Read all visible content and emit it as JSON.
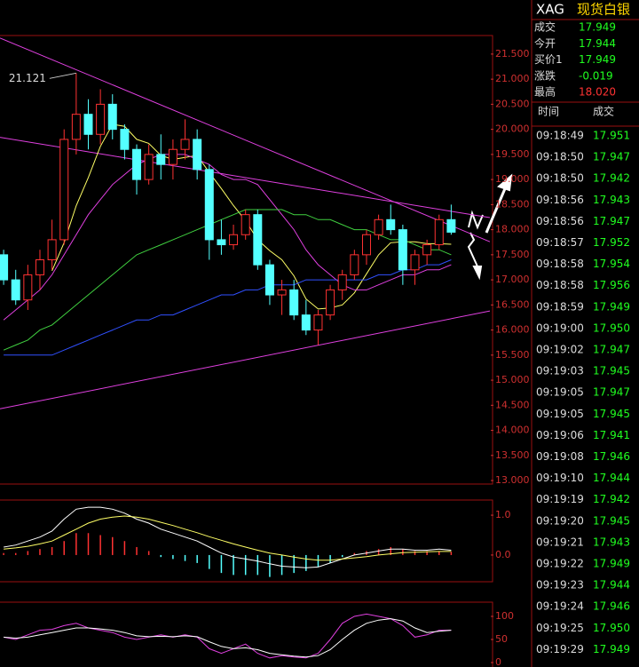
{
  "chart_data": [
    {
      "type": "candlestick",
      "open": [
        17.5,
        17.0,
        16.6,
        17.1,
        17.4,
        17.8,
        19.8,
        20.3,
        19.9,
        20.5,
        20.0,
        19.6,
        19.0,
        19.5,
        19.3,
        19.6,
        19.8,
        19.2,
        17.8,
        17.7,
        17.9,
        18.3,
        17.3,
        16.7,
        16.8,
        16.3,
        16.0,
        16.3,
        16.8,
        17.1,
        17.5,
        17.9,
        18.2,
        18.0,
        17.2,
        17.5,
        17.7,
        18.2
      ],
      "high": [
        17.6,
        17.2,
        17.3,
        17.6,
        18.2,
        20.0,
        21.121,
        20.6,
        20.8,
        20.7,
        20.1,
        19.7,
        19.7,
        19.9,
        19.8,
        20.2,
        20.0,
        19.3,
        18.2,
        18.1,
        18.4,
        18.4,
        17.4,
        17.0,
        17.0,
        16.6,
        16.4,
        16.9,
        17.2,
        17.6,
        18.0,
        18.3,
        18.5,
        18.1,
        17.6,
        17.8,
        18.3,
        18.5
      ],
      "low": [
        16.9,
        16.5,
        16.4,
        16.8,
        17.2,
        17.7,
        19.5,
        19.6,
        19.7,
        19.8,
        19.4,
        18.7,
        18.9,
        19.0,
        19.0,
        19.4,
        19.0,
        17.4,
        17.5,
        17.6,
        17.8,
        17.2,
        16.5,
        16.3,
        16.2,
        15.9,
        15.7,
        16.2,
        16.6,
        17.0,
        17.3,
        17.8,
        17.9,
        16.9,
        16.9,
        17.3,
        17.6,
        17.9
      ],
      "close": [
        17.0,
        16.6,
        17.1,
        17.4,
        17.8,
        19.8,
        20.3,
        19.9,
        20.5,
        20.0,
        19.6,
        19.0,
        19.5,
        19.3,
        19.6,
        19.8,
        19.2,
        17.8,
        17.7,
        17.9,
        18.3,
        17.3,
        16.7,
        16.8,
        16.3,
        16.0,
        16.3,
        16.8,
        17.1,
        17.5,
        17.9,
        18.2,
        18.0,
        17.2,
        17.5,
        17.7,
        18.2,
        17.95
      ],
      "up_color": "#ff3232",
      "down_color": "#54ffff",
      "high_label": "21.121",
      "series": [
        {
          "color": "#ffff66",
          "values": [
            null,
            null,
            null,
            null,
            17.18,
            17.74,
            18.48,
            19.04,
            19.66,
            20.1,
            20.06,
            19.8,
            19.72,
            19.48,
            19.4,
            19.44,
            19.48,
            19.14,
            18.82,
            18.48,
            18.18,
            17.8,
            17.58,
            17.4,
            17.08,
            16.62,
            16.42,
            16.44,
            16.5,
            16.74,
            17.12,
            17.5,
            17.74,
            17.76,
            17.76,
            17.72,
            17.72,
            17.71
          ]
        },
        {
          "color": "#e040e0",
          "values": [
            16.2,
            16.4,
            16.6,
            16.8,
            17.1,
            17.5,
            17.9,
            18.3,
            18.6,
            18.9,
            19.1,
            19.3,
            19.4,
            19.5,
            19.5,
            19.5,
            19.4,
            19.3,
            19.1,
            19.0,
            19.0,
            18.9,
            18.6,
            18.3,
            18.0,
            17.6,
            17.3,
            17.1,
            16.9,
            16.8,
            16.8,
            16.9,
            17.0,
            17.1,
            17.1,
            17.2,
            17.2,
            17.3
          ]
        },
        {
          "color": "#40d040",
          "values": [
            15.6,
            15.7,
            15.8,
            16.0,
            16.1,
            16.3,
            16.5,
            16.7,
            16.9,
            17.1,
            17.3,
            17.5,
            17.6,
            17.7,
            17.8,
            17.9,
            18.0,
            18.1,
            18.2,
            18.3,
            18.4,
            18.4,
            18.4,
            18.4,
            18.3,
            18.3,
            18.2,
            18.2,
            18.1,
            18.0,
            18.0,
            17.9,
            17.8,
            17.8,
            17.7,
            17.6,
            17.6,
            17.5
          ]
        },
        {
          "color": "#3050ff",
          "values": [
            15.5,
            15.5,
            15.5,
            15.5,
            15.5,
            15.6,
            15.7,
            15.8,
            15.9,
            16.0,
            16.1,
            16.2,
            16.2,
            16.3,
            16.3,
            16.4,
            16.5,
            16.6,
            16.7,
            16.7,
            16.8,
            16.8,
            16.9,
            16.9,
            16.9,
            17.0,
            17.0,
            17.0,
            17.0,
            17.0,
            17.0,
            17.1,
            17.1,
            17.2,
            17.2,
            17.3,
            17.3,
            17.4
          ]
        }
      ],
      "trendlines": [
        {
          "color": "#e040e0",
          "from": [
            -0.3,
            21.82
          ],
          "to": [
            40.2,
            17.76
          ]
        },
        {
          "color": "#e040e0",
          "from": [
            -0.3,
            19.84
          ],
          "to": [
            40.2,
            18.24
          ]
        },
        {
          "color": "#e040e0",
          "from": [
            -0.3,
            14.43
          ],
          "to": [
            40.2,
            16.38
          ]
        }
      ],
      "ylim": [
        12.93,
        21.87
      ],
      "yticks": [
        {
          "value": 21.5,
          "label": "21.500"
        },
        {
          "value": 21,
          "label": "21.000"
        },
        {
          "value": 20.5,
          "label": "20.500"
        },
        {
          "value": 20,
          "label": "20.000"
        },
        {
          "value": 19.5,
          "label": "19.500"
        },
        {
          "value": 19,
          "label": "19.000"
        },
        {
          "value": 18.5,
          "label": "18.500"
        },
        {
          "value": 18,
          "label": "18.000"
        },
        {
          "value": 17.5,
          "label": "17.500"
        },
        {
          "value": 17,
          "label": "17.000"
        },
        {
          "value": 16.5,
          "label": "16.500"
        },
        {
          "value": 16,
          "label": "16.000"
        },
        {
          "value": 15.5,
          "label": "15.500"
        },
        {
          "value": 15,
          "label": "15.000"
        },
        {
          "value": 14.5,
          "label": "14.500"
        },
        {
          "value": 14,
          "label": "14.000"
        },
        {
          "value": 13.5,
          "label": "13.500"
        },
        {
          "value": 13,
          "label": "13.000"
        }
      ]
    },
    {
      "type": "bar",
      "values": [
        0.05,
        0.05,
        0.1,
        0.15,
        0.2,
        0.35,
        0.55,
        0.55,
        0.5,
        0.45,
        0.35,
        0.2,
        0.1,
        -0.05,
        -0.1,
        -0.15,
        -0.2,
        -0.35,
        -0.45,
        -0.5,
        -0.5,
        -0.5,
        -0.55,
        -0.5,
        -0.45,
        -0.4,
        -0.3,
        -0.2,
        -0.05,
        0.05,
        0.1,
        0.15,
        0.2,
        0.15,
        0.1,
        0.1,
        0.1,
        0.08
      ],
      "color": "#ff3232",
      "negative_color": "#54ffff",
      "series": [
        {
          "color": "#ffffff",
          "values": [
            0.2,
            0.25,
            0.35,
            0.45,
            0.6,
            0.9,
            1.15,
            1.2,
            1.2,
            1.15,
            1.05,
            0.9,
            0.8,
            0.65,
            0.55,
            0.45,
            0.35,
            0.2,
            0.05,
            -0.05,
            -0.1,
            -0.15,
            -0.22,
            -0.28,
            -0.3,
            -0.32,
            -0.3,
            -0.2,
            -0.1,
            0.0,
            0.05,
            0.1,
            0.15,
            0.15,
            0.12,
            0.12,
            0.15,
            0.12
          ]
        },
        {
          "color": "#ffff66",
          "values": [
            0.15,
            0.18,
            0.22,
            0.28,
            0.35,
            0.5,
            0.65,
            0.8,
            0.9,
            0.95,
            0.98,
            0.95,
            0.9,
            0.82,
            0.74,
            0.65,
            0.56,
            0.46,
            0.37,
            0.28,
            0.2,
            0.12,
            0.05,
            0.0,
            -0.05,
            -0.1,
            -0.13,
            -0.13,
            -0.1,
            -0.07,
            -0.04,
            0.0,
            0.03,
            0.06,
            0.07,
            0.08,
            0.09,
            0.09
          ]
        }
      ],
      "ylim": [
        -0.67,
        1.38
      ],
      "yticks": [
        {
          "value": 1,
          "label": "1.0"
        },
        {
          "value": 0,
          "label": "0.0"
        }
      ]
    },
    {
      "type": "line",
      "series": [
        {
          "color": "#e040e0",
          "values": [
            55,
            50,
            60,
            70,
            72,
            80,
            85,
            75,
            70,
            65,
            55,
            50,
            55,
            60,
            55,
            60,
            55,
            30,
            20,
            30,
            40,
            20,
            10,
            15,
            12,
            10,
            20,
            50,
            85,
            100,
            105,
            100,
            95,
            80,
            55,
            60,
            70,
            70
          ]
        },
        {
          "color": "#ffffff",
          "values": [
            55,
            53,
            55,
            60,
            65,
            70,
            75,
            75,
            73,
            70,
            65,
            58,
            56,
            57,
            56,
            58,
            56,
            45,
            35,
            30,
            32,
            28,
            20,
            17,
            14,
            12,
            15,
            28,
            50,
            70,
            85,
            92,
            95,
            90,
            75,
            65,
            68,
            70
          ]
        }
      ],
      "ylim": [
        -9.6,
        130.8
      ],
      "yticks": [
        100,
        50,
        0
      ]
    }
  ],
  "quote_panel": {
    "symbol": "XAG",
    "name": "现货白银",
    "fields": [
      {
        "label": "成交",
        "value": "17.949"
      },
      {
        "label": "今开",
        "value": "17.944"
      },
      {
        "label": "买价1",
        "value": "17.949"
      },
      {
        "label": "涨跌",
        "value": "-0.019"
      },
      {
        "label": "最高",
        "value": "18.020"
      }
    ],
    "trades_header": [
      "时间",
      "成交"
    ],
    "trades": [
      [
        "09:18:49",
        "17.951"
      ],
      [
        "09:18:50",
        "17.947"
      ],
      [
        "09:18:50",
        "17.942"
      ],
      [
        "09:18:56",
        "17.943"
      ],
      [
        "09:18:56",
        "17.947"
      ],
      [
        "09:18:57",
        "17.952"
      ],
      [
        "09:18:58",
        "17.954"
      ],
      [
        "09:18:58",
        "17.956"
      ],
      [
        "09:18:59",
        "17.949"
      ],
      [
        "09:19:00",
        "17.950"
      ],
      [
        "09:19:02",
        "17.947"
      ],
      [
        "09:19:03",
        "17.945"
      ],
      [
        "09:19:05",
        "17.947"
      ],
      [
        "09:19:05",
        "17.945"
      ],
      [
        "09:19:06",
        "17.941"
      ],
      [
        "09:19:08",
        "17.946"
      ],
      [
        "09:19:10",
        "17.944"
      ],
      [
        "09:19:19",
        "17.942"
      ],
      [
        "09:19:20",
        "17.945"
      ],
      [
        "09:19:21",
        "17.943"
      ],
      [
        "09:19:22",
        "17.949"
      ],
      [
        "09:19:23",
        "17.944"
      ],
      [
        "09:19:24",
        "17.946"
      ],
      [
        "09:19:25",
        "17.950"
      ],
      [
        "09:19:29",
        "17.949"
      ]
    ]
  }
}
